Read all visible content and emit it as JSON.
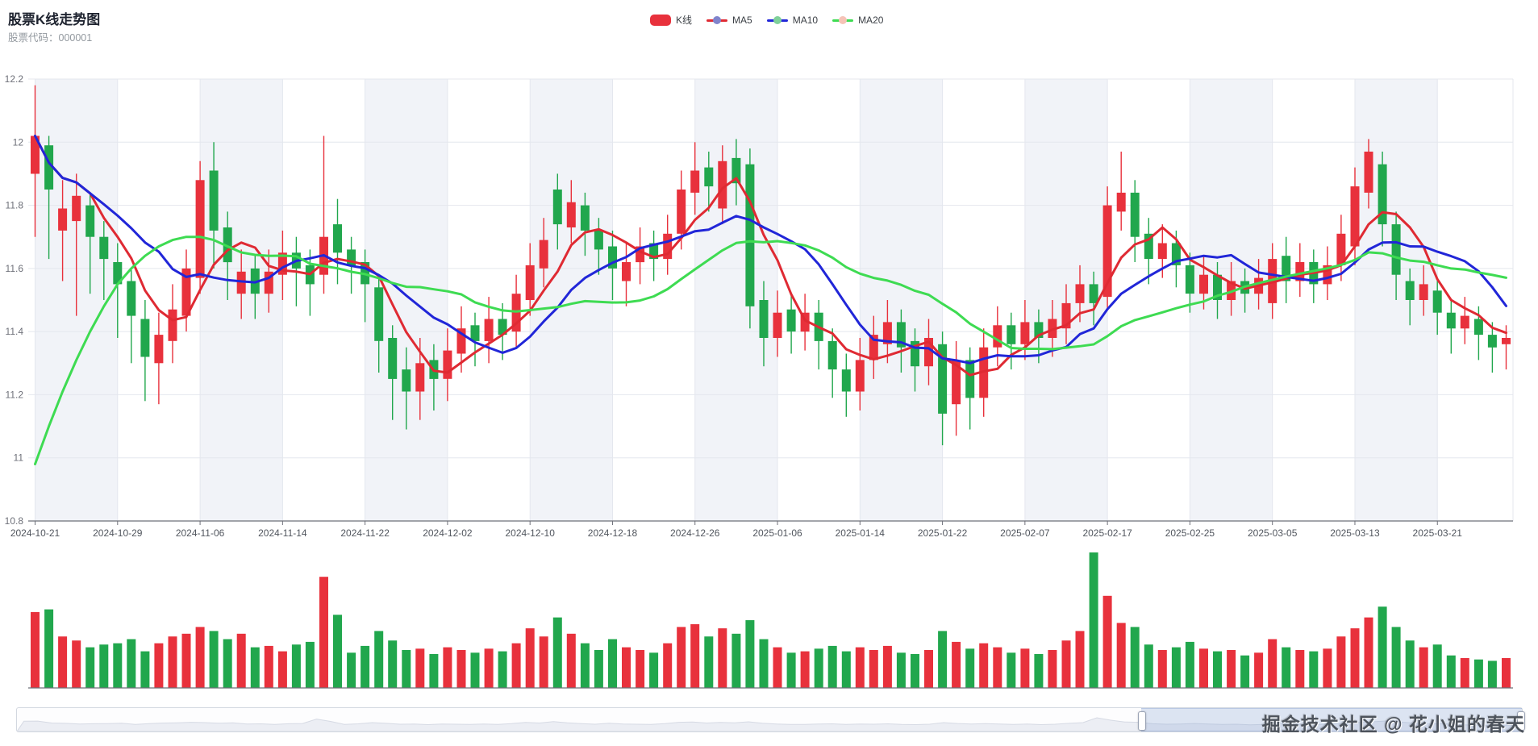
{
  "header": {
    "title": "股票K线走势图",
    "subtitle": "股票代码：000001"
  },
  "legend": {
    "items": [
      {
        "label": "K线",
        "type": "candle",
        "marker_color": "#e8313c",
        "line_color": "#e8313c"
      },
      {
        "label": "MA5",
        "type": "line",
        "marker_color": "#8084cc",
        "line_color": "#df2a33"
      },
      {
        "label": "MA10",
        "type": "line",
        "marker_color": "#7fd09a",
        "line_color": "#2126d8"
      },
      {
        "label": "MA20",
        "type": "line",
        "marker_color": "#f6c3b7",
        "line_color": "#3edb52"
      }
    ]
  },
  "watermark": {
    "text": "掘金技术社区 @ 花小姐的春天"
  },
  "datazoom": {
    "range_start_fraction": 0.747,
    "range_end_fraction": 1.0
  },
  "chart_data": {
    "type": "candlestick+volume",
    "title": "股票K线走势图",
    "grid": {
      "split_area": true,
      "split_area_color": "#f1f3f8",
      "grid_line_color": "#e4e7ee",
      "axis_line_color": "#6e7079"
    },
    "colors": {
      "up": "#e8313c",
      "down": "#21a74d",
      "ma5": "#df2a33",
      "ma10": "#2126d8",
      "ma20": "#3edb52"
    },
    "y_axis": {
      "min": 10.8,
      "max": 12.2,
      "step": 0.2,
      "labels": [
        "12.2",
        "12",
        "11.8",
        "11.6",
        "11.4",
        "11.2",
        "11",
        "10.8"
      ]
    },
    "x_ticks": [
      "2024-10-21",
      "2024-10-29",
      "2024-11-06",
      "2024-11-14",
      "2024-11-22",
      "2024-12-02",
      "2024-12-10",
      "2024-12-18",
      "2024-12-26",
      "2025-01-06",
      "2025-01-14",
      "2025-01-22",
      "2025-02-07",
      "2025-02-17",
      "2025-02-25",
      "2025-03-05",
      "2025-03-13",
      "2025-03-21"
    ],
    "tick_every_n_candles": 6,
    "ma20_lead_values": [
      10.98,
      11.1,
      11.21,
      11.31,
      11.4,
      11.48,
      11.55,
      11.6,
      11.64,
      11.67,
      11.69,
      11.7,
      11.7,
      11.69,
      11.67
    ],
    "volume_note": "volume is relative bar height, 100 = tallest bar",
    "candle_format": [
      "date",
      "open",
      "close",
      "high",
      "low",
      "volume_rel"
    ],
    "candles": [
      [
        "2024-10-21",
        11.9,
        12.02,
        12.18,
        11.7,
        56
      ],
      [
        "2024-10-22",
        11.99,
        11.85,
        12.02,
        11.63,
        58
      ],
      [
        "2024-10-23",
        11.72,
        11.79,
        11.88,
        11.56,
        38
      ],
      [
        "2024-10-24",
        11.75,
        11.83,
        11.9,
        11.45,
        35
      ],
      [
        "2024-10-25",
        11.8,
        11.7,
        11.84,
        11.52,
        30
      ],
      [
        "2024-10-28",
        11.7,
        11.63,
        11.75,
        11.5,
        32
      ],
      [
        "2024-10-29",
        11.62,
        11.55,
        11.68,
        11.38,
        33
      ],
      [
        "2024-10-30",
        11.56,
        11.45,
        11.6,
        11.3,
        36
      ],
      [
        "2024-10-31",
        11.44,
        11.32,
        11.5,
        11.18,
        27
      ],
      [
        "2024-11-01",
        11.3,
        11.39,
        11.46,
        11.17,
        33
      ],
      [
        "2024-11-04",
        11.37,
        11.47,
        11.55,
        11.3,
        38
      ],
      [
        "2024-11-05",
        11.45,
        11.6,
        11.66,
        11.4,
        40
      ],
      [
        "2024-11-06",
        11.57,
        11.88,
        11.94,
        11.52,
        45
      ],
      [
        "2024-11-07",
        11.91,
        11.72,
        12.0,
        11.6,
        42
      ],
      [
        "2024-11-08",
        11.73,
        11.62,
        11.78,
        11.5,
        36
      ],
      [
        "2024-11-11",
        11.52,
        11.59,
        11.66,
        11.44,
        40
      ],
      [
        "2024-11-12",
        11.6,
        11.52,
        11.64,
        11.44,
        30
      ],
      [
        "2024-11-13",
        11.52,
        11.59,
        11.66,
        11.46,
        31
      ],
      [
        "2024-11-14",
        11.58,
        11.65,
        11.72,
        11.5,
        27
      ],
      [
        "2024-11-15",
        11.65,
        11.6,
        11.7,
        11.48,
        32
      ],
      [
        "2024-11-18",
        11.61,
        11.55,
        11.66,
        11.45,
        34
      ],
      [
        "2024-11-19",
        11.58,
        11.7,
        12.02,
        11.52,
        82
      ],
      [
        "2024-11-20",
        11.74,
        11.65,
        11.82,
        11.55,
        54
      ],
      [
        "2024-11-21",
        11.66,
        11.61,
        11.7,
        11.52,
        26
      ],
      [
        "2024-11-22",
        11.62,
        11.55,
        11.66,
        11.43,
        31
      ],
      [
        "2024-11-25",
        11.54,
        11.37,
        11.58,
        11.27,
        42
      ],
      [
        "2024-11-26",
        11.38,
        11.25,
        11.42,
        11.12,
        35
      ],
      [
        "2024-11-27",
        11.28,
        11.21,
        11.35,
        11.09,
        28
      ],
      [
        "2024-11-28",
        11.21,
        11.3,
        11.38,
        11.12,
        29
      ],
      [
        "2024-11-29",
        11.31,
        11.25,
        11.36,
        11.15,
        25
      ],
      [
        "2024-12-02",
        11.25,
        11.34,
        11.41,
        11.18,
        30
      ],
      [
        "2024-12-03",
        11.33,
        11.41,
        11.48,
        11.27,
        28
      ],
      [
        "2024-12-04",
        11.42,
        11.37,
        11.46,
        11.29,
        26
      ],
      [
        "2024-12-05",
        11.37,
        11.44,
        11.51,
        11.3,
        29
      ],
      [
        "2024-12-06",
        11.44,
        11.39,
        11.49,
        11.31,
        27
      ],
      [
        "2024-12-09",
        11.4,
        11.52,
        11.58,
        11.35,
        33
      ],
      [
        "2024-12-10",
        11.5,
        11.61,
        11.68,
        11.45,
        44
      ],
      [
        "2024-12-11",
        11.6,
        11.69,
        11.76,
        11.54,
        38
      ],
      [
        "2024-12-12",
        11.85,
        11.74,
        11.9,
        11.66,
        52
      ],
      [
        "2024-12-13",
        11.73,
        11.81,
        11.88,
        11.68,
        40
      ],
      [
        "2024-12-16",
        11.8,
        11.72,
        11.84,
        11.64,
        33
      ],
      [
        "2024-12-17",
        11.72,
        11.66,
        11.76,
        11.58,
        28
      ],
      [
        "2024-12-18",
        11.67,
        11.6,
        11.72,
        11.5,
        36
      ],
      [
        "2024-12-19",
        11.56,
        11.62,
        11.68,
        11.48,
        30
      ],
      [
        "2024-12-20",
        11.62,
        11.67,
        11.73,
        11.55,
        28
      ],
      [
        "2024-12-23",
        11.68,
        11.63,
        11.72,
        11.56,
        26
      ],
      [
        "2024-12-24",
        11.63,
        11.71,
        11.77,
        11.58,
        33
      ],
      [
        "2024-12-25",
        11.71,
        11.85,
        11.91,
        11.66,
        45
      ],
      [
        "2024-12-26",
        11.84,
        11.91,
        12.0,
        11.77,
        47
      ],
      [
        "2024-12-27",
        11.92,
        11.86,
        11.97,
        11.78,
        38
      ],
      [
        "2024-12-30",
        11.79,
        11.94,
        11.99,
        11.74,
        44
      ],
      [
        "2024-12-31",
        11.95,
        11.87,
        12.01,
        11.8,
        40
      ],
      [
        "2025-01-02",
        11.93,
        11.48,
        11.98,
        11.41,
        50
      ],
      [
        "2025-01-03",
        11.5,
        11.38,
        11.56,
        11.29,
        36
      ],
      [
        "2025-01-06",
        11.38,
        11.46,
        11.53,
        11.32,
        30
      ],
      [
        "2025-01-07",
        11.47,
        11.4,
        11.52,
        11.33,
        26
      ],
      [
        "2025-01-08",
        11.4,
        11.46,
        11.52,
        11.34,
        27
      ],
      [
        "2025-01-09",
        11.46,
        11.37,
        11.5,
        11.28,
        29
      ],
      [
        "2025-01-10",
        11.37,
        11.28,
        11.41,
        11.19,
        31
      ],
      [
        "2025-01-13",
        11.28,
        11.21,
        11.33,
        11.13,
        27
      ],
      [
        "2025-01-14",
        11.21,
        11.31,
        11.38,
        11.15,
        30
      ],
      [
        "2025-01-15",
        11.31,
        11.39,
        11.45,
        11.25,
        28
      ],
      [
        "2025-01-16",
        11.36,
        11.43,
        11.5,
        11.3,
        31
      ],
      [
        "2025-01-17",
        11.43,
        11.35,
        11.47,
        11.27,
        26
      ],
      [
        "2025-01-20",
        11.37,
        11.29,
        11.41,
        11.21,
        25
      ],
      [
        "2025-01-21",
        11.29,
        11.38,
        11.44,
        11.23,
        28
      ],
      [
        "2025-01-22",
        11.36,
        11.14,
        11.4,
        11.04,
        42
      ],
      [
        "2025-01-23",
        11.17,
        11.31,
        11.37,
        11.07,
        34
      ],
      [
        "2025-01-24",
        11.31,
        11.19,
        11.35,
        11.09,
        29
      ],
      [
        "2025-01-27",
        11.19,
        11.35,
        11.41,
        11.13,
        33
      ],
      [
        "2025-02-05",
        11.35,
        11.42,
        11.48,
        11.29,
        30
      ],
      [
        "2025-02-06",
        11.42,
        11.36,
        11.46,
        11.28,
        26
      ],
      [
        "2025-02-07",
        11.36,
        11.43,
        11.5,
        11.31,
        29
      ],
      [
        "2025-02-10",
        11.43,
        11.38,
        11.47,
        11.3,
        25
      ],
      [
        "2025-02-11",
        11.38,
        11.44,
        11.5,
        11.32,
        28
      ],
      [
        "2025-02-12",
        11.41,
        11.49,
        11.55,
        11.36,
        35
      ],
      [
        "2025-02-13",
        11.49,
        11.55,
        11.61,
        11.43,
        42
      ],
      [
        "2025-02-14",
        11.55,
        11.49,
        11.59,
        11.42,
        100
      ],
      [
        "2025-02-17",
        11.51,
        11.8,
        11.86,
        11.47,
        68
      ],
      [
        "2025-02-18",
        11.78,
        11.84,
        11.97,
        11.72,
        48
      ],
      [
        "2025-02-19",
        11.84,
        11.7,
        11.88,
        11.62,
        45
      ],
      [
        "2025-02-20",
        11.71,
        11.63,
        11.76,
        11.55,
        32
      ],
      [
        "2025-02-21",
        11.63,
        11.68,
        11.74,
        11.57,
        28
      ],
      [
        "2025-02-24",
        11.68,
        11.61,
        11.72,
        11.54,
        30
      ],
      [
        "2025-02-25",
        11.61,
        11.52,
        11.65,
        11.46,
        34
      ],
      [
        "2025-02-26",
        11.52,
        11.58,
        11.64,
        11.47,
        29
      ],
      [
        "2025-02-27",
        11.58,
        11.5,
        11.62,
        11.44,
        27
      ],
      [
        "2025-02-28",
        11.5,
        11.56,
        11.62,
        11.45,
        28
      ],
      [
        "2025-03-03",
        11.56,
        11.52,
        11.6,
        11.46,
        24
      ],
      [
        "2025-03-04",
        11.52,
        11.57,
        11.63,
        11.47,
        26
      ],
      [
        "2025-03-05",
        11.49,
        11.63,
        11.68,
        11.44,
        36
      ],
      [
        "2025-03-06",
        11.64,
        11.56,
        11.7,
        11.49,
        30
      ],
      [
        "2025-03-07",
        11.56,
        11.62,
        11.68,
        11.51,
        28
      ],
      [
        "2025-03-10",
        11.62,
        11.55,
        11.66,
        11.49,
        27
      ],
      [
        "2025-03-11",
        11.55,
        11.61,
        11.67,
        11.5,
        29
      ],
      [
        "2025-03-12",
        11.61,
        11.71,
        11.77,
        11.56,
        38
      ],
      [
        "2025-03-13",
        11.67,
        11.86,
        11.92,
        11.61,
        44
      ],
      [
        "2025-03-14",
        11.84,
        11.97,
        12.01,
        11.79,
        52
      ],
      [
        "2025-03-17",
        11.93,
        11.74,
        11.97,
        11.67,
        60
      ],
      [
        "2025-03-18",
        11.74,
        11.58,
        11.78,
        11.5,
        45
      ],
      [
        "2025-03-19",
        11.56,
        11.5,
        11.6,
        11.42,
        35
      ],
      [
        "2025-03-20",
        11.5,
        11.55,
        11.61,
        11.45,
        30
      ],
      [
        "2025-03-21",
        11.53,
        11.46,
        11.57,
        11.39,
        32
      ],
      [
        "2025-03-24",
        11.46,
        11.41,
        11.5,
        11.33,
        24
      ],
      [
        "2025-03-25",
        11.41,
        11.45,
        11.51,
        11.36,
        22
      ],
      [
        "2025-03-26",
        11.44,
        11.39,
        11.48,
        11.31,
        21
      ],
      [
        "2025-03-27",
        11.39,
        11.35,
        11.43,
        11.27,
        20
      ],
      [
        "2025-03-28",
        11.36,
        11.38,
        11.42,
        11.28,
        22
      ]
    ]
  }
}
